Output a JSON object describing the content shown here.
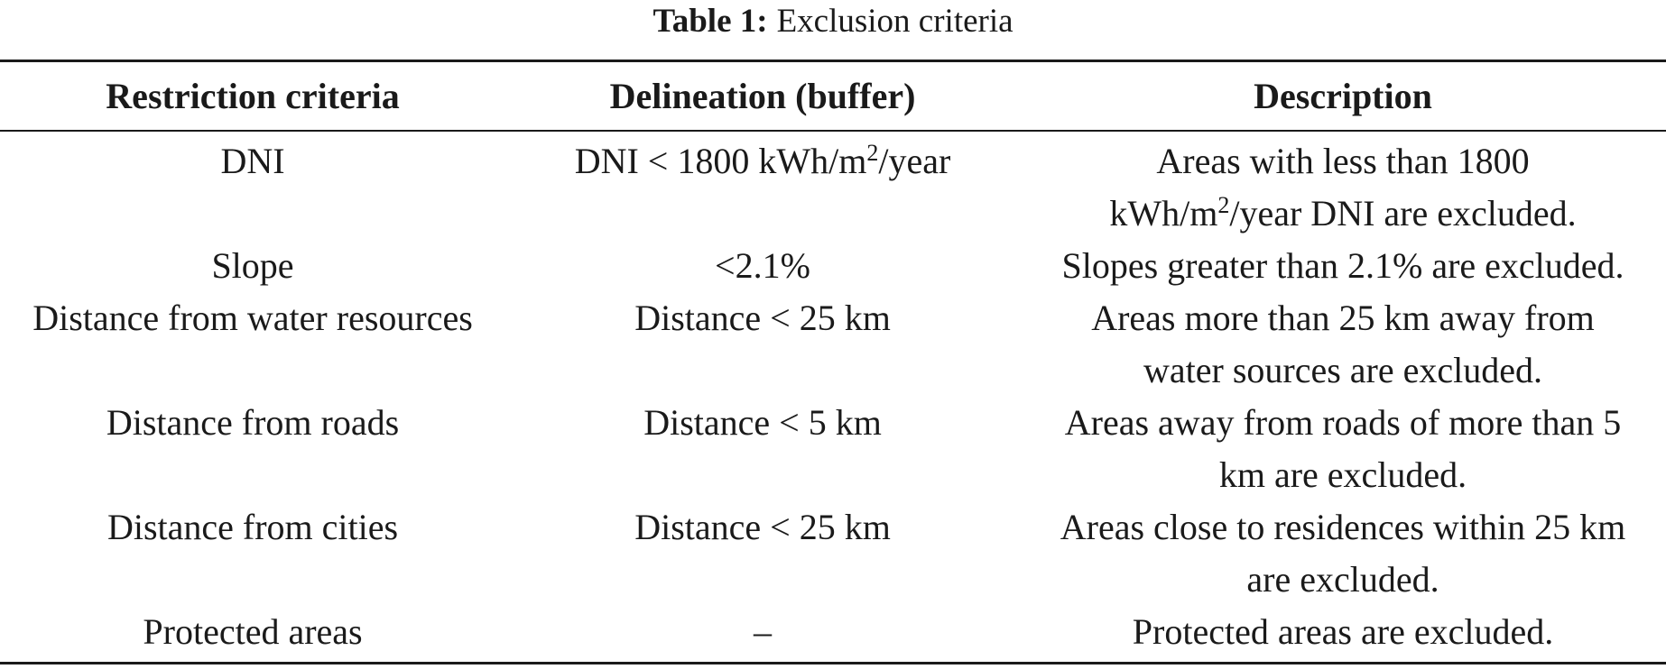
{
  "caption": {
    "label": "Table 1:",
    "text": "Exclusion criteria"
  },
  "table": {
    "headers": [
      "Restriction criteria",
      "Delineation (buffer)",
      "Description"
    ],
    "rows": [
      {
        "criteria": "DNI",
        "delineation_pre": "DNI < 1800 kWh/m",
        "delineation_sup": "2",
        "delineation_post": "/year",
        "description_line1": "Areas with less than 1800",
        "description_line2_pre": "kWh/m",
        "description_line2_sup": "2",
        "description_line2_post": "/year DNI are excluded."
      },
      {
        "criteria": "Slope",
        "delineation": "<2.1%",
        "description": "Slopes greater than 2.1% are excluded."
      },
      {
        "criteria": "Distance from water resources",
        "delineation": "Distance < 25 km",
        "description_line1": "Areas more than 25 km away from",
        "description_line2": "water sources are excluded."
      },
      {
        "criteria": "Distance from roads",
        "delineation": "Distance < 5 km",
        "description_line1": "Areas away from roads of more than 5",
        "description_line2": "km are excluded."
      },
      {
        "criteria": "Distance from cities",
        "delineation": "Distance < 25 km",
        "description_line1": "Areas close to residences within 25 km",
        "description_line2": "are excluded."
      },
      {
        "criteria": "Protected areas",
        "delineation": "–",
        "description": "Protected areas are excluded."
      }
    ]
  }
}
